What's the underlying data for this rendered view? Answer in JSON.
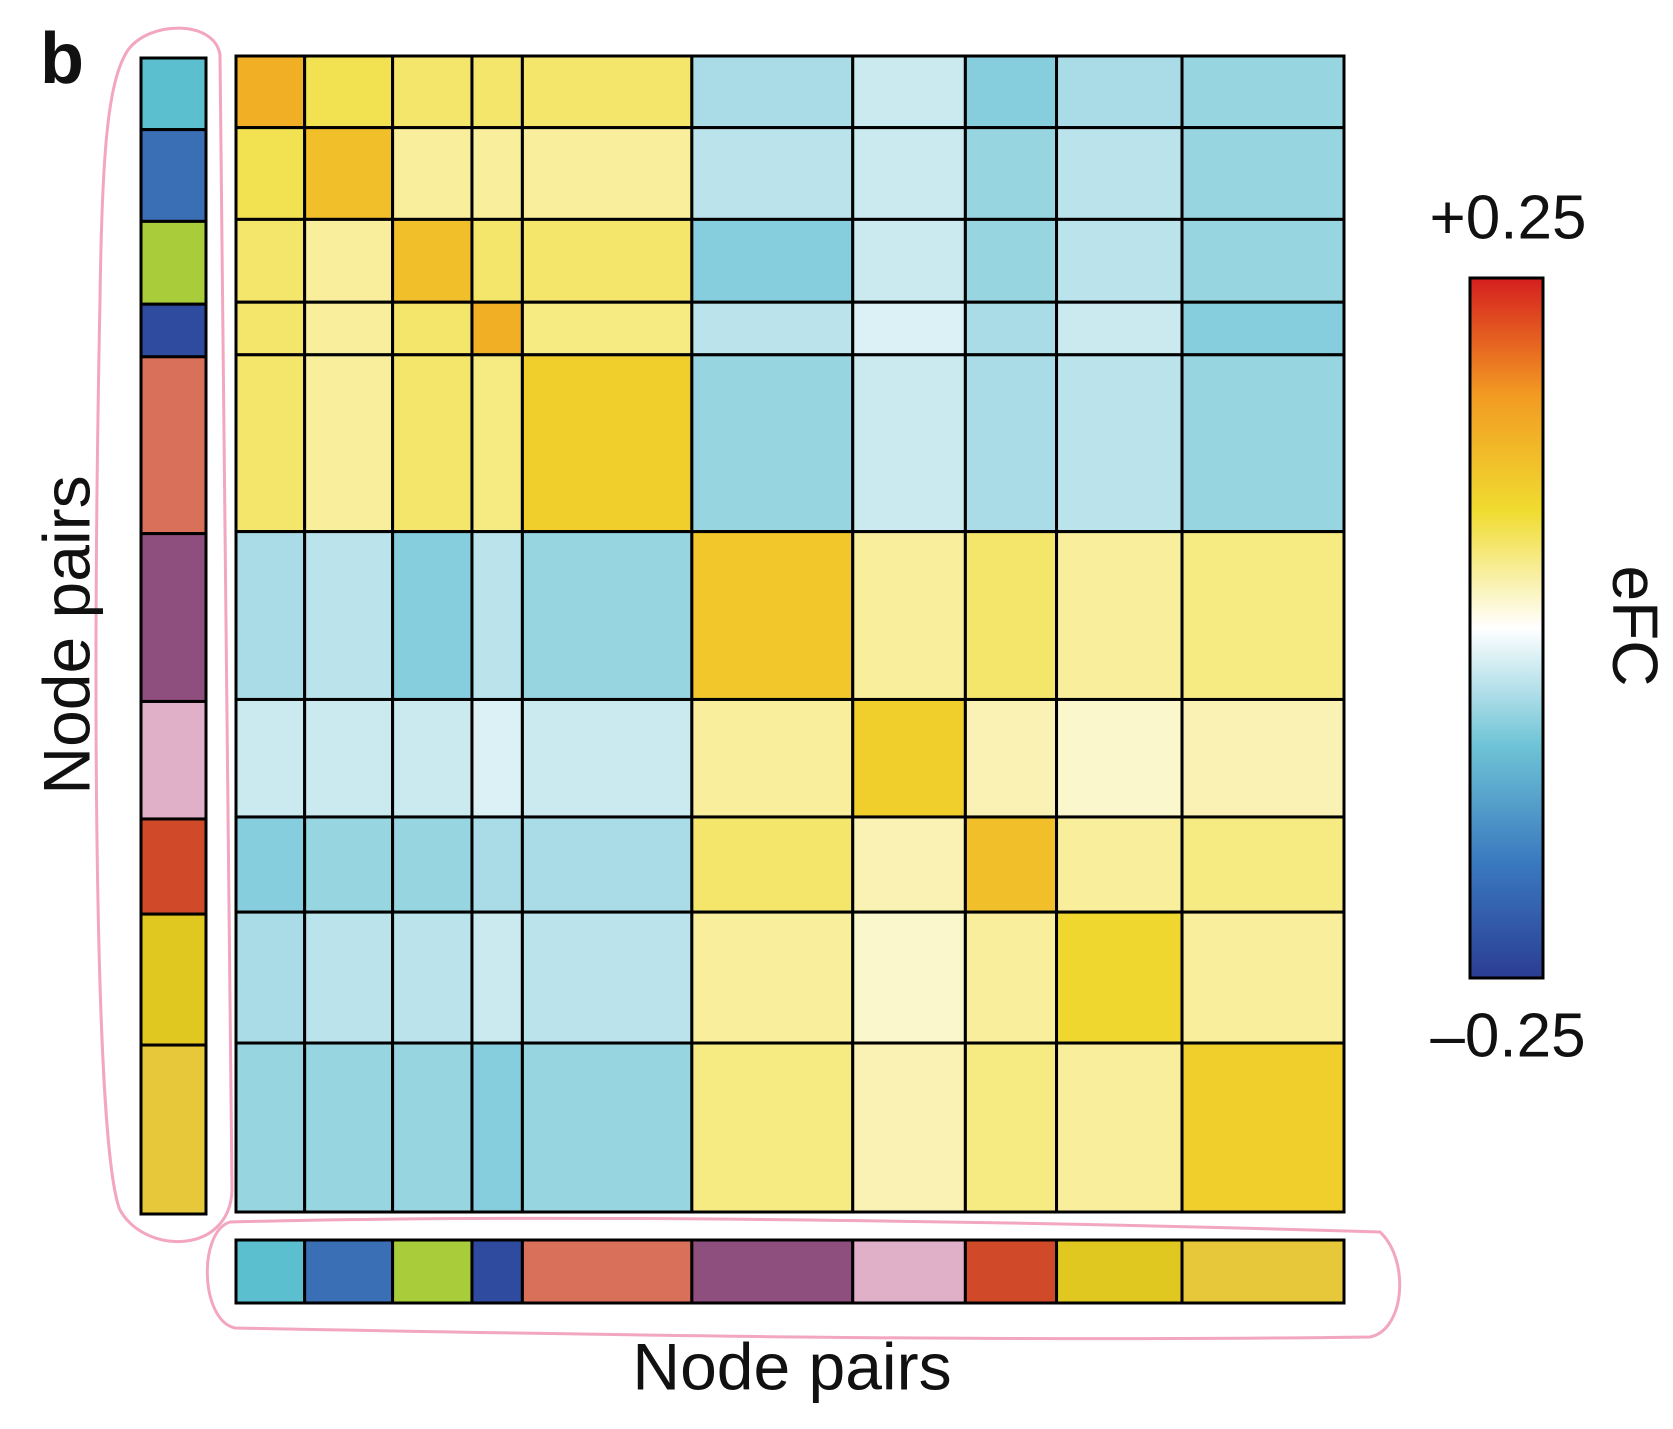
{
  "chart_data": {
    "type": "heatmap",
    "panel_label": "b",
    "xlabel": "Node pairs",
    "ylabel": "Node pairs",
    "colorbar_label": "eFC",
    "zlim": [
      -0.25,
      0.25
    ],
    "zticks": [
      {
        "value": 0.25,
        "label": "+0.25"
      },
      {
        "value": -0.25,
        "label": "–0.25"
      }
    ],
    "colormap": [
      "#2b3d94",
      "#3a7abf",
      "#6fc4d6",
      "#ffffff",
      "#f0dc30",
      "#f29a22",
      "#d61f1f"
    ],
    "groups": {
      "colors": [
        "#5bbfcf",
        "#3a6eb5",
        "#a8cc3a",
        "#2f4ba0",
        "#d9705a",
        "#8e4e7e",
        "#e0b0c8",
        "#d04a2a",
        "#e0c820",
        "#e6c83a"
      ],
      "sizes": [
        64,
        82,
        74,
        47,
        158,
        150,
        105,
        85,
        117,
        151
      ]
    },
    "matrix": [
      [
        0.14,
        0.07,
        0.06,
        0.06,
        0.06,
        -0.05,
        -0.03,
        -0.07,
        -0.05,
        -0.06
      ],
      [
        0.07,
        0.12,
        0.04,
        0.04,
        0.04,
        -0.04,
        -0.03,
        -0.06,
        -0.04,
        -0.06
      ],
      [
        0.06,
        0.04,
        0.12,
        0.06,
        0.06,
        -0.07,
        -0.03,
        -0.06,
        -0.04,
        -0.06
      ],
      [
        0.06,
        0.04,
        0.06,
        0.14,
        0.05,
        -0.04,
        -0.02,
        -0.05,
        -0.03,
        -0.07
      ],
      [
        0.06,
        0.04,
        0.06,
        0.05,
        0.1,
        -0.06,
        -0.03,
        -0.05,
        -0.04,
        -0.06
      ],
      [
        -0.05,
        -0.04,
        -0.07,
        -0.04,
        -0.06,
        0.11,
        0.04,
        0.06,
        0.04,
        0.05
      ],
      [
        -0.03,
        -0.03,
        -0.03,
        -0.02,
        -0.03,
        0.04,
        0.1,
        0.03,
        0.02,
        0.03
      ],
      [
        -0.07,
        -0.06,
        -0.06,
        -0.05,
        -0.05,
        0.06,
        0.03,
        0.12,
        0.04,
        0.05
      ],
      [
        -0.05,
        -0.04,
        -0.04,
        -0.03,
        -0.04,
        0.04,
        0.02,
        0.04,
        0.09,
        0.04
      ],
      [
        -0.06,
        -0.06,
        -0.06,
        -0.07,
        -0.06,
        0.05,
        0.03,
        0.05,
        0.04,
        0.1
      ]
    ]
  }
}
